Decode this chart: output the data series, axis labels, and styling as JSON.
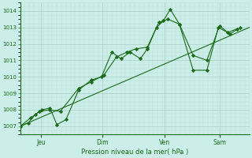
{
  "bg_color": "#cceee8",
  "grid_color": "#aaccc8",
  "line_color": "#1a6b1a",
  "marker_color": "#1a6b1a",
  "xlabel": "Pression niveau de la mer( hPa )",
  "ylim": [
    1006.5,
    1014.5
  ],
  "xlim": [
    0,
    1
  ],
  "yticks": [
    1007,
    1008,
    1009,
    1010,
    1011,
    1012,
    1013,
    1014
  ],
  "xtick_labels": [
    "Jeu",
    "Dim",
    "Ven",
    "Sam"
  ],
  "xtick_positions": [
    0.09,
    0.36,
    0.63,
    0.87
  ],
  "series1_x": [
    0.0,
    0.035,
    0.065,
    0.095,
    0.13,
    0.16,
    0.2,
    0.255,
    0.31,
    0.355,
    0.4,
    0.44,
    0.48,
    0.525,
    0.555,
    0.595,
    0.625,
    0.655,
    0.695,
    0.755,
    0.815,
    0.865,
    0.905,
    0.945
  ],
  "series1_y": [
    1007.0,
    1007.2,
    1007.7,
    1008.0,
    1008.1,
    1007.1,
    1007.4,
    1009.2,
    1009.8,
    1010.0,
    1011.5,
    1011.1,
    1011.5,
    1011.1,
    1011.7,
    1013.0,
    1013.4,
    1014.1,
    1013.2,
    1010.4,
    1010.4,
    1013.0,
    1012.7,
    1012.9
  ],
  "series2_x": [
    0.0,
    0.045,
    0.085,
    0.13,
    0.175,
    0.255,
    0.31,
    0.365,
    0.42,
    0.465,
    0.505,
    0.555,
    0.605,
    0.645,
    0.695,
    0.755,
    0.815,
    0.87,
    0.915,
    0.96
  ],
  "series2_y": [
    1007.0,
    1007.5,
    1007.9,
    1008.0,
    1007.9,
    1009.3,
    1009.7,
    1010.1,
    1011.2,
    1011.5,
    1011.7,
    1011.8,
    1013.3,
    1013.5,
    1013.2,
    1011.3,
    1011.0,
    1013.1,
    1012.6,
    1013.0
  ],
  "trend_x": [
    0.0,
    1.0
  ],
  "trend_y": [
    1007.0,
    1013.0
  ],
  "lw": 0.8,
  "ms": 2.2,
  "grid_major_color": "#aaccc8",
  "grid_minor_color": "#bbddd8"
}
